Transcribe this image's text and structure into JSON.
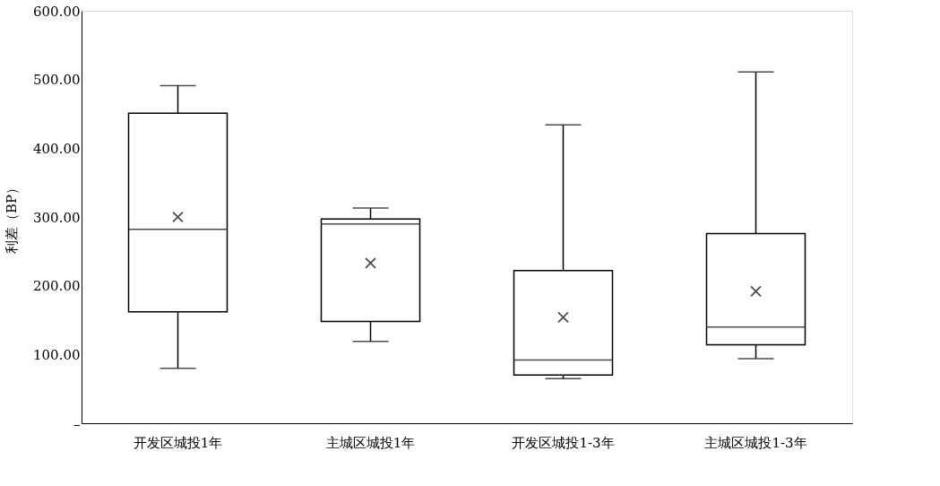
{
  "chart_data": {
    "type": "box",
    "ylabel": "利差（BP）",
    "categories": [
      "开发区城投1年",
      "主城区城投1年",
      "开发区城投1-3年",
      "主城区城投1-3年"
    ],
    "boxes": [
      {
        "low": 80,
        "q1": 162,
        "median": 282,
        "q3": 451,
        "high": 491,
        "mean": 300
      },
      {
        "low": 119,
        "q1": 148,
        "median": 290,
        "q3": 297,
        "high": 313,
        "mean": 233
      },
      {
        "low": 65,
        "q1": 70,
        "median": 92,
        "q3": 222,
        "high": 434,
        "mean": 154
      },
      {
        "low": 94,
        "q1": 114,
        "median": 140,
        "q3": 276,
        "high": 511,
        "mean": 192
      }
    ],
    "ylim": [
      0,
      600
    ],
    "yticks": [
      {
        "value": 0,
        "label": "–"
      },
      {
        "value": 100,
        "label": "100.00"
      },
      {
        "value": 200,
        "label": "200.00"
      },
      {
        "value": 300,
        "label": "300.00"
      },
      {
        "value": 400,
        "label": "400.00"
      },
      {
        "value": 500,
        "label": "500.00"
      },
      {
        "value": 600,
        "label": "600.00"
      }
    ],
    "marker": "cross",
    "grid": false
  }
}
